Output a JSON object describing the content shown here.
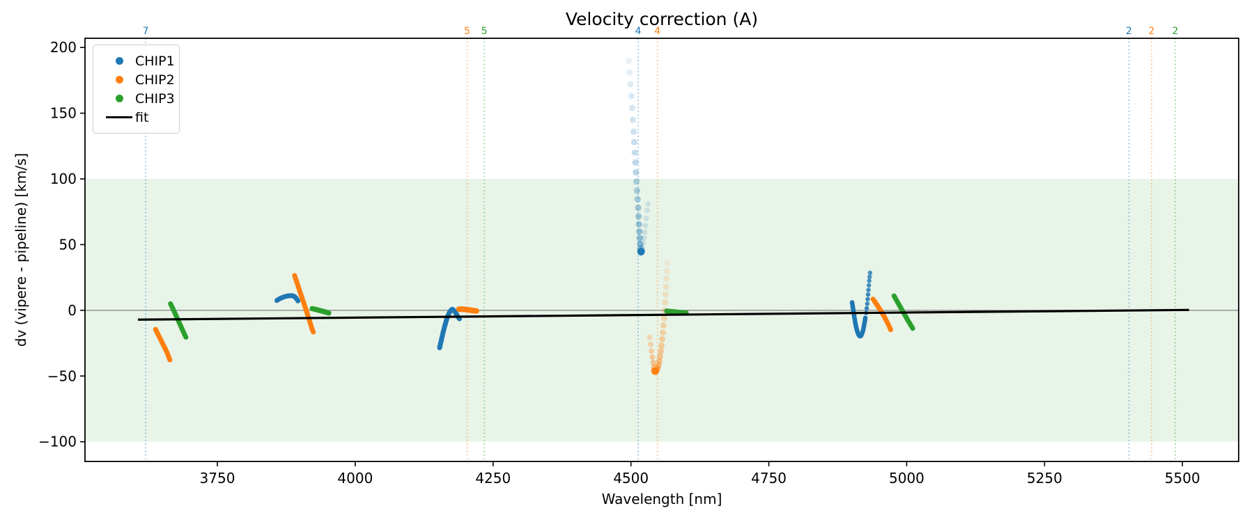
{
  "chart_data": {
    "type": "scatter",
    "title": "Velocity correction (A)",
    "xlabel": "Wavelength [nm]",
    "ylabel": "dv (vipere - pipeline) [km/s]",
    "xlim": [
      3510,
      5602
    ],
    "ylim": [
      -115,
      207
    ],
    "xticks": [
      3750,
      4000,
      4250,
      4500,
      4750,
      5000,
      5250,
      5500
    ],
    "yticks": [
      -100,
      -50,
      0,
      50,
      100,
      150,
      200
    ],
    "grid": false,
    "band": {
      "ymin": -100,
      "ymax": 100,
      "color": "rgba(0,128,0,0.09)"
    },
    "zero_line": {
      "y": 0,
      "color": "#808080",
      "width": 1.2
    },
    "fit_line": {
      "x1": 3606,
      "y1": -7.1,
      "x2": 5512,
      "y2": 0.3,
      "color": "#000000",
      "width": 3.2
    },
    "vlines": [
      {
        "x": 3620,
        "label": "7",
        "color": "#1f77b4"
      },
      {
        "x": 4203,
        "label": "5",
        "color": "#ff7f0e"
      },
      {
        "x": 4234,
        "label": "5",
        "color": "#2ca02c"
      },
      {
        "x": 4513,
        "label": "4",
        "color": "#1f77b4"
      },
      {
        "x": 4548,
        "label": "4",
        "color": "#ff7f0e"
      },
      {
        "x": 5403,
        "label": "2",
        "color": "#1f77b4"
      },
      {
        "x": 5444,
        "label": "2",
        "color": "#ff7f0e"
      },
      {
        "x": 5487,
        "label": "2",
        "color": "#2ca02c"
      }
    ],
    "series": [
      {
        "name": "CHIP1",
        "color": "#1f77b4",
        "clusters": [
          {
            "shape": "stroke",
            "width": 7,
            "alpha": 1,
            "points": [
              [
                3858,
                7.5
              ],
              [
                3863,
                8.8
              ],
              [
                3868,
                9.8
              ],
              [
                3873,
                10.5
              ],
              [
                3878,
                11.0
              ],
              [
                3883,
                11.2
              ],
              [
                3887,
                11.0
              ],
              [
                3890,
                10.4
              ],
              [
                3893,
                9.2
              ],
              [
                3896,
                7.2
              ]
            ]
          },
          {
            "shape": "stroke",
            "width": 7,
            "alpha": 1,
            "points": [
              [
                4153,
                -28.5
              ],
              [
                4156,
                -23
              ],
              [
                4159,
                -17.5
              ],
              [
                4162,
                -12.5
              ],
              [
                4165,
                -8
              ],
              [
                4168,
                -4.2
              ],
              [
                4171,
                -1.5
              ],
              [
                4174,
                0.3
              ],
              [
                4176,
                0.8
              ],
              [
                4178,
                0.3
              ],
              [
                4181,
                -1.2
              ],
              [
                4184,
                -3.2
              ],
              [
                4187,
                -5.3
              ],
              [
                4189,
                -6.5
              ]
            ]
          },
          {
            "shape": "dots",
            "r": 4.6,
            "alpha_start": 0.1,
            "alpha_end": 0.5,
            "points": [
              [
                4496,
                190
              ],
              [
                4497.5,
                181
              ],
              [
                4499,
                172
              ],
              [
                4500.5,
                163
              ],
              [
                4502,
                154
              ],
              [
                4503.5,
                145
              ],
              [
                4505,
                136
              ],
              [
                4506,
                128
              ],
              [
                4507,
                120
              ],
              [
                4508,
                112.5
              ],
              [
                4509,
                105
              ],
              [
                4510,
                98
              ],
              [
                4511,
                91
              ],
              [
                4512,
                84.5
              ],
              [
                4513,
                78
              ],
              [
                4513.8,
                71.5
              ],
              [
                4514.6,
                65.5
              ],
              [
                4515.3,
                60
              ],
              [
                4516,
                55
              ],
              [
                4516.6,
                50.5
              ],
              [
                4517.2,
                47
              ]
            ]
          },
          {
            "shape": "dots",
            "r": 5,
            "alpha_start": 0.85,
            "alpha_end": 0.85,
            "points": [
              [
                4517.6,
                44.8
              ],
              [
                4518.4,
                44.3
              ],
              [
                4519.2,
                44.9
              ]
            ]
          },
          {
            "shape": "dots",
            "r": 4,
            "alpha_start": 0.17,
            "alpha_end": 0.15,
            "points": [
              [
                4520.5,
                47.5
              ],
              [
                4522,
                51
              ],
              [
                4523.5,
                55
              ],
              [
                4525,
                59.5
              ],
              [
                4526.5,
                64.5
              ],
              [
                4528,
                70
              ],
              [
                4529.5,
                76
              ],
              [
                4530.8,
                81
              ]
            ]
          },
          {
            "shape": "stroke",
            "width": 6.5,
            "alpha": 1,
            "points": [
              [
                4901,
                6
              ],
              [
                4903,
                0.5
              ],
              [
                4905,
                -5
              ],
              [
                4907,
                -9.8
              ],
              [
                4909,
                -13.8
              ],
              [
                4911,
                -16.8
              ],
              [
                4913,
                -18.8
              ],
              [
                4915,
                -19.7
              ],
              [
                4917,
                -19.5
              ],
              [
                4919,
                -18
              ],
              [
                4921,
                -15.2
              ],
              [
                4923,
                -11
              ],
              [
                4925,
                -5.8
              ]
            ]
          },
          {
            "shape": "dots",
            "r": 3.2,
            "alpha_start": 0.9,
            "alpha_end": 0.8,
            "points": [
              [
                4926.5,
                -2
              ],
              [
                4927.5,
                1.5
              ],
              [
                4928.5,
                5
              ],
              [
                4929.3,
                8.5
              ],
              [
                4930,
                12
              ],
              [
                4930.7,
                15.5
              ],
              [
                4931.4,
                19
              ],
              [
                4932.1,
                22.5
              ],
              [
                4932.8,
                25.5
              ],
              [
                4933.6,
                28.5
              ]
            ]
          }
        ]
      },
      {
        "name": "CHIP2",
        "color": "#ff7f0e",
        "clusters": [
          {
            "shape": "stroke",
            "width": 7,
            "alpha": 1,
            "points": [
              [
                3638,
                -14.5
              ],
              [
                3642,
                -18
              ],
              [
                3646,
                -21.3
              ],
              [
                3650,
                -24.6
              ],
              [
                3654,
                -28
              ],
              [
                3658,
                -31.5
              ],
              [
                3661,
                -34.5
              ],
              [
                3664,
                -37.8
              ]
            ]
          },
          {
            "shape": "stroke",
            "width": 7,
            "alpha": 1,
            "points": [
              [
                3890,
                26.5
              ],
              [
                3894,
                21.5
              ],
              [
                3898,
                16.5
              ],
              [
                3902,
                11.5
              ],
              [
                3906,
                6.5
              ],
              [
                3910,
                1.5
              ],
              [
                3913,
                -2.5
              ],
              [
                3916,
                -6.5
              ],
              [
                3919,
                -10.5
              ],
              [
                3922,
                -14.5
              ],
              [
                3924,
                -16.5
              ]
            ]
          },
          {
            "shape": "stroke",
            "width": 8,
            "alpha": 1,
            "points": [
              [
                4188,
                0.9
              ],
              [
                4196,
                0.8
              ],
              [
                4204,
                0.4
              ],
              [
                4212,
                -0.1
              ],
              [
                4220,
                -0.5
              ]
            ]
          },
          {
            "shape": "dots",
            "r": 4.5,
            "alpha_start": 0.1,
            "alpha_end": 0.5,
            "points": [
              [
                4566,
                36
              ],
              [
                4565.2,
                30
              ],
              [
                4564.4,
                24
              ],
              [
                4563.6,
                18
              ],
              [
                4562.8,
                12
              ],
              [
                4562,
                6
              ],
              [
                4561,
                0
              ],
              [
                4560,
                -6
              ],
              [
                4559,
                -11.5
              ],
              [
                4557.8,
                -17
              ],
              [
                4556.6,
                -22
              ],
              [
                4555.4,
                -26.8
              ],
              [
                4554.2,
                -31
              ],
              [
                4552.8,
                -35
              ],
              [
                4551.4,
                -38.6
              ],
              [
                4550,
                -41.6
              ],
              [
                4548.4,
                -43.8
              ],
              [
                4546.8,
                -45.3
              ]
            ]
          },
          {
            "shape": "dots",
            "r": 5,
            "alpha_start": 0.9,
            "alpha_end": 0.9,
            "points": [
              [
                4545,
                -46.2
              ],
              [
                4543.8,
                -46.5
              ],
              [
                4542.8,
                -46
              ]
            ]
          },
          {
            "shape": "dots",
            "r": 4,
            "alpha_start": 0.25,
            "alpha_end": 0.45,
            "points": [
              [
                4534,
                -20.5
              ],
              [
                4535.6,
                -26
              ],
              [
                4537.2,
                -31
              ],
              [
                4538.8,
                -35.6
              ],
              [
                4540.4,
                -39.6
              ],
              [
                4541.8,
                -43
              ]
            ]
          },
          {
            "shape": "stroke",
            "width": 7,
            "alpha": 1,
            "points": [
              [
                4939,
                8.5
              ],
              [
                4944,
                5.5
              ],
              [
                4949,
                2.3
              ],
              [
                4954,
                -1
              ],
              [
                4959,
                -4.5
              ],
              [
                4963,
                -7.8
              ],
              [
                4967,
                -11
              ],
              [
                4971,
                -14.8
              ]
            ]
          }
        ]
      },
      {
        "name": "CHIP3",
        "color": "#2ca02c",
        "clusters": [
          {
            "shape": "stroke",
            "width": 7,
            "alpha": 1,
            "points": [
              [
                3665,
                5
              ],
              [
                3669,
                1.5
              ],
              [
                3673,
                -2
              ],
              [
                3677,
                -5.8
              ],
              [
                3681,
                -9.5
              ],
              [
                3685,
                -13.2
              ],
              [
                3688,
                -16
              ],
              [
                3691,
                -18.8
              ],
              [
                3693,
                -20.5
              ]
            ]
          },
          {
            "shape": "stroke",
            "width": 7.5,
            "alpha": 1,
            "points": [
              [
                3922,
                1.3
              ],
              [
                3928,
                0.7
              ],
              [
                3934,
                0.1
              ],
              [
                3940,
                -0.6
              ],
              [
                3946,
                -1.3
              ],
              [
                3952,
                -2.1
              ]
            ]
          },
          {
            "shape": "stroke",
            "width": 7.5,
            "alpha": 1,
            "points": [
              [
                4565,
                -0.6
              ],
              [
                4572,
                -0.9
              ],
              [
                4579,
                -1.2
              ],
              [
                4586,
                -1.5
              ],
              [
                4593,
                -1.7
              ],
              [
                4600,
                -1.9
              ]
            ]
          },
          {
            "shape": "stroke",
            "width": 7,
            "alpha": 1,
            "points": [
              [
                4977,
                11
              ],
              [
                4982,
                7.3
              ],
              [
                4987,
                3.6
              ],
              [
                4992,
                -0.1
              ],
              [
                4997,
                -3.8
              ],
              [
                5002,
                -7.5
              ],
              [
                5007,
                -11
              ],
              [
                5011,
                -13.8
              ]
            ]
          }
        ]
      }
    ],
    "legend": {
      "position": "upper-left",
      "items": [
        {
          "label": "CHIP1",
          "color": "#1f77b4",
          "marker": "dot"
        },
        {
          "label": "CHIP2",
          "color": "#ff7f0e",
          "marker": "dot"
        },
        {
          "label": "CHIP3",
          "color": "#2ca02c",
          "marker": "dot"
        },
        {
          "label": "fit",
          "color": "#000000",
          "marker": "line"
        }
      ]
    }
  }
}
